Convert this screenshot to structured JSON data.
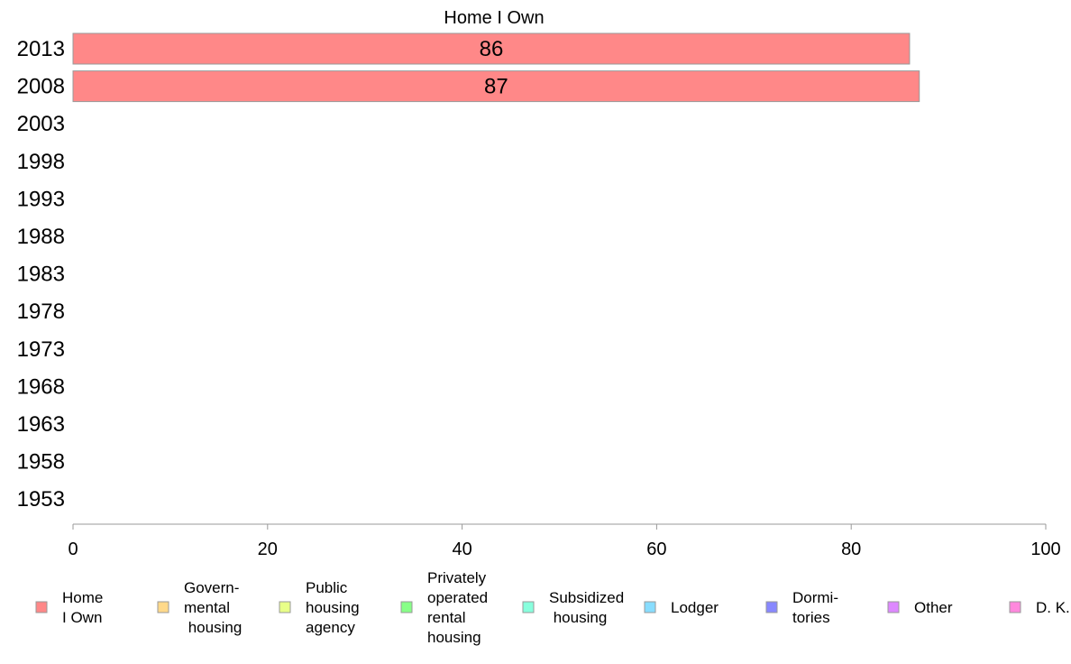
{
  "chart_data": {
    "type": "bar",
    "orientation": "horizontal",
    "title": "Home I Own",
    "categories": [
      "2013",
      "2008",
      "2003",
      "1998",
      "1993",
      "1988",
      "1983",
      "1978",
      "1973",
      "1968",
      "1963",
      "1958",
      "1953"
    ],
    "series": [
      {
        "name": "Home I Own",
        "color": "#ff8888",
        "values": [
          86,
          87,
          null,
          null,
          null,
          null,
          null,
          null,
          null,
          null,
          null,
          null,
          null
        ]
      }
    ],
    "data_labels": [
      "86",
      "87",
      "",
      "",
      "",
      "",
      "",
      "",
      "",
      "",
      "",
      "",
      ""
    ],
    "xlim": [
      0,
      100
    ],
    "xticks": [
      "0",
      "20",
      "40",
      "60",
      "80",
      "100"
    ],
    "grid": false,
    "legend_position": "bottom",
    "legend": [
      {
        "lines": [
          "Home",
          "I Own"
        ],
        "color": "#ff8888",
        "icon": "legend-swatch"
      },
      {
        "lines": [
          "Govern-",
          "mental",
          " housing"
        ],
        "color": "#ffd98a",
        "icon": "legend-swatch"
      },
      {
        "lines": [
          "Public",
          "housing",
          "agency"
        ],
        "color": "#e8ff88",
        "icon": "legend-swatch"
      },
      {
        "lines": [
          "Privately",
          "operated",
          "rental",
          "housing"
        ],
        "color": "#88ff88",
        "icon": "legend-swatch"
      },
      {
        "lines": [
          "Subsidized",
          " housing"
        ],
        "color": "#88ffdd",
        "icon": "legend-swatch"
      },
      {
        "lines": [
          "Lodger"
        ],
        "color": "#88ddff",
        "icon": "legend-swatch"
      },
      {
        "lines": [
          "Dormi-",
          "tories"
        ],
        "color": "#8888ff",
        "icon": "legend-swatch"
      },
      {
        "lines": [
          "Other"
        ],
        "color": "#dd88ff",
        "icon": "legend-swatch"
      },
      {
        "lines": [
          "D. K."
        ],
        "color": "#ff88dd",
        "icon": "legend-swatch"
      }
    ]
  }
}
